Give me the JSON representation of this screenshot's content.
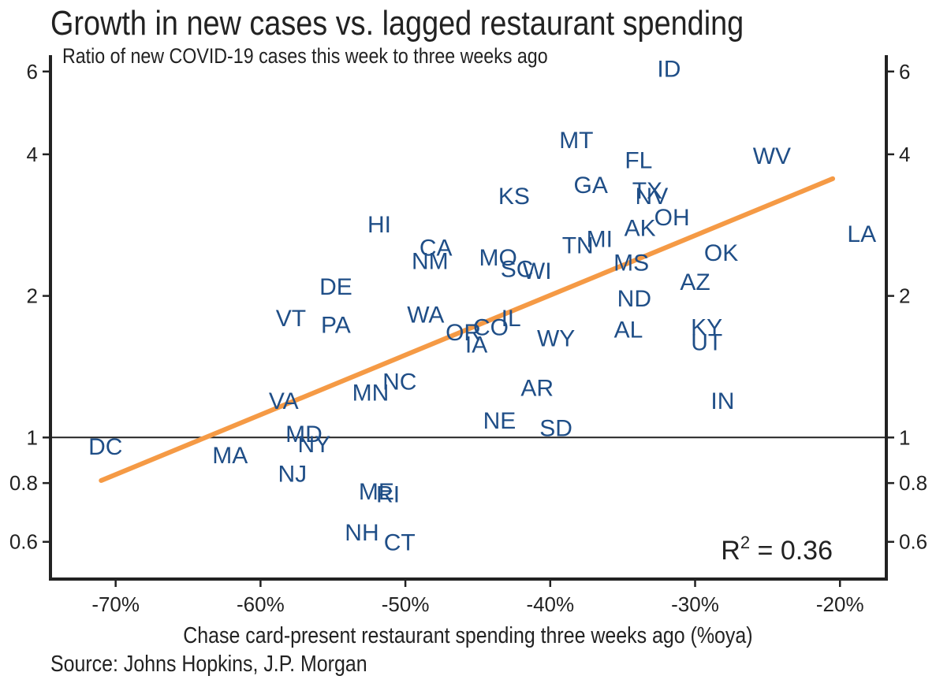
{
  "chart_data": {
    "type": "scatter",
    "title": "Growth in new cases vs. lagged restaurant spending",
    "subtitle": "Ratio of new COVID-19 cases this week to three weeks ago",
    "xlabel": "Chase card-present restaurant spending three weeks ago (%oya)",
    "source": "Source:  Johns Hopkins, J.P. Morgan",
    "y_scale": "log",
    "xlim": [
      -74.5,
      -16.8
    ],
    "ylim": [
      0.5,
      6.5
    ],
    "x_ticks": [
      -70,
      -60,
      -50,
      -40,
      -30,
      -20
    ],
    "x_tick_labels": [
      "-70%",
      "-60%",
      "-50%",
      "-40%",
      "-30%",
      "-20%"
    ],
    "y_ticks": [
      0.6,
      0.8,
      1,
      2,
      4,
      6
    ],
    "y_tick_labels": [
      "0.6",
      "0.8",
      "1",
      "2",
      "4",
      "6"
    ],
    "reference_line_y": 1,
    "points": [
      {
        "label": "DC",
        "x": -70.7,
        "y": 0.96
      },
      {
        "label": "MA",
        "x": -62.1,
        "y": 0.92
      },
      {
        "label": "NJ",
        "x": -57.8,
        "y": 0.84
      },
      {
        "label": "MD",
        "x": -57.0,
        "y": 1.02
      },
      {
        "label": "NY",
        "x": -56.3,
        "y": 0.97
      },
      {
        "label": "VA",
        "x": -58.4,
        "y": 1.2
      },
      {
        "label": "VT",
        "x": -57.9,
        "y": 1.8
      },
      {
        "label": "PA",
        "x": -54.8,
        "y": 1.74
      },
      {
        "label": "DE",
        "x": -54.8,
        "y": 2.1
      },
      {
        "label": "HI",
        "x": -51.8,
        "y": 2.85
      },
      {
        "label": "MN",
        "x": -52.4,
        "y": 1.25
      },
      {
        "label": "NC",
        "x": -50.4,
        "y": 1.32
      },
      {
        "label": "ME",
        "x": -52.0,
        "y": 0.77
      },
      {
        "label": "RI",
        "x": -51.2,
        "y": 0.76
      },
      {
        "label": "NH",
        "x": -53.0,
        "y": 0.63
      },
      {
        "label": "CT",
        "x": -50.4,
        "y": 0.6
      },
      {
        "label": "WA",
        "x": -48.6,
        "y": 1.83
      },
      {
        "label": "CA",
        "x": -47.9,
        "y": 2.54
      },
      {
        "label": "NM",
        "x": -48.3,
        "y": 2.38
      },
      {
        "label": "OR",
        "x": -46.0,
        "y": 1.68
      },
      {
        "label": "IA",
        "x": -45.1,
        "y": 1.58
      },
      {
        "label": "CO",
        "x": -44.1,
        "y": 1.72
      },
      {
        "label": "IL",
        "x": -42.7,
        "y": 1.8
      },
      {
        "label": "MO",
        "x": -43.6,
        "y": 2.42
      },
      {
        "label": "SC",
        "x": -42.3,
        "y": 2.29
      },
      {
        "label": "WI",
        "x": -40.9,
        "y": 2.27
      },
      {
        "label": "KS",
        "x": -42.5,
        "y": 3.27
      },
      {
        "label": "NE",
        "x": -43.5,
        "y": 1.09
      },
      {
        "label": "AR",
        "x": -40.9,
        "y": 1.28
      },
      {
        "label": "SD",
        "x": -39.6,
        "y": 1.05
      },
      {
        "label": "WY",
        "x": -39.6,
        "y": 1.63
      },
      {
        "label": "MT",
        "x": -38.2,
        "y": 4.3
      },
      {
        "label": "GA",
        "x": -37.2,
        "y": 3.45
      },
      {
        "label": "TN",
        "x": -38.1,
        "y": 2.57
      },
      {
        "label": "MI",
        "x": -36.6,
        "y": 2.65
      },
      {
        "label": "AL",
        "x": -34.6,
        "y": 1.7
      },
      {
        "label": "ND",
        "x": -34.2,
        "y": 1.98
      },
      {
        "label": "MS",
        "x": -34.4,
        "y": 2.36
      },
      {
        "label": "AK",
        "x": -33.8,
        "y": 2.8
      },
      {
        "label": "TX",
        "x": -33.3,
        "y": 3.36
      },
      {
        "label": "NV",
        "x": -33.0,
        "y": 3.27
      },
      {
        "label": "FL",
        "x": -33.9,
        "y": 3.9
      },
      {
        "label": "OH",
        "x": -31.6,
        "y": 2.95
      },
      {
        "label": "ID",
        "x": -31.8,
        "y": 6.1
      },
      {
        "label": "AZ",
        "x": -30.0,
        "y": 2.15
      },
      {
        "label": "OK",
        "x": -28.2,
        "y": 2.48
      },
      {
        "label": "KY",
        "x": -29.2,
        "y": 1.72
      },
      {
        "label": "UT",
        "x": -29.2,
        "y": 1.6
      },
      {
        "label": "IN",
        "x": -28.1,
        "y": 1.2
      },
      {
        "label": "WV",
        "x": -24.7,
        "y": 3.98
      },
      {
        "label": "LA",
        "x": -18.5,
        "y": 2.72
      }
    ],
    "trend_line": {
      "color": "#f59a45",
      "start": {
        "x": -71,
        "y": 0.81
      },
      "end": {
        "x": -20.5,
        "y": 3.55
      }
    },
    "annotation": {
      "prefix": "R",
      "superscript": "2",
      "suffix": " = 0.36"
    },
    "label_color": "#1f4e87",
    "axis_color": "#222222",
    "grid": false
  }
}
